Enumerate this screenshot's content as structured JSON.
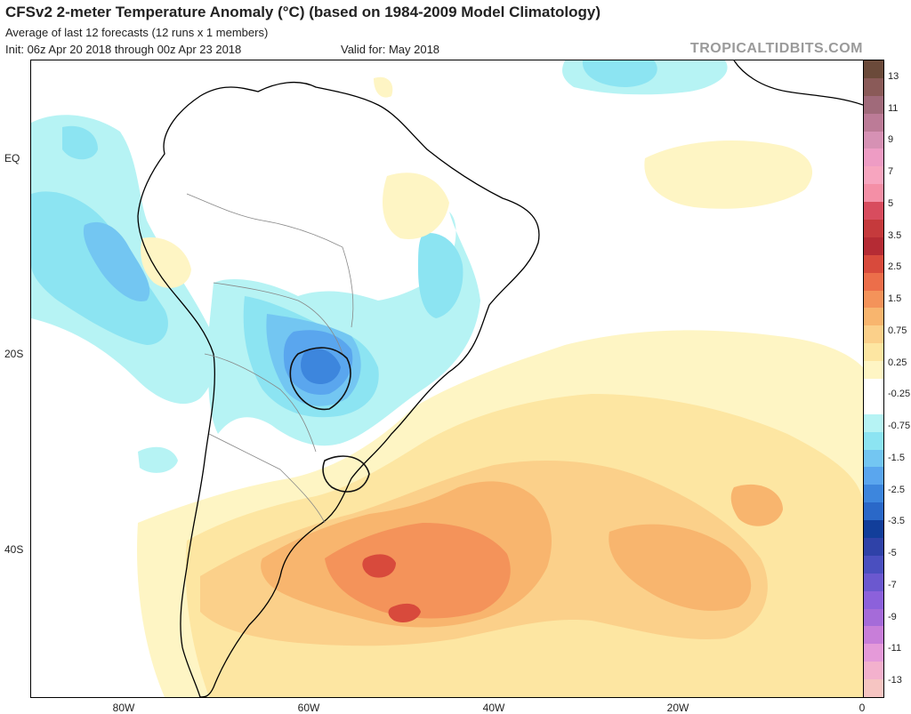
{
  "header": {
    "title": "CFSv2 2-meter Temperature Anomaly (°C) (based on 1984-2009 Model Climatology)",
    "subtitle": "Average of last 12 forecasts (12 runs x 1 members)",
    "init": "Init: 06z Apr 20 2018 through 00z Apr 23 2018",
    "valid": "Valid for: May 2018",
    "site": "TROPICALTIDBITS.COM"
  },
  "axes": {
    "lat_labels": [
      "EQ",
      "20S",
      "40S"
    ],
    "lon_labels": [
      "80W",
      "60W",
      "40W",
      "20W",
      "0"
    ]
  },
  "colorbar": {
    "labels": [
      "13",
      "11",
      "9",
      "7",
      "5",
      "3.5",
      "2.5",
      "1.5",
      "0.75",
      "0.25",
      "-0.25",
      "-0.75",
      "-1.5",
      "-2.5",
      "-3.5",
      "-5",
      "-7",
      "-9",
      "-11",
      "-13"
    ],
    "colors": [
      "#6b4a3a",
      "#8a5a58",
      "#a06a7a",
      "#bc7b97",
      "#d691b4",
      "#ee9cc4",
      "#f7a5bf",
      "#f48fa6",
      "#d84c5e",
      "#c53a3c",
      "#b52b34",
      "#d84a3c",
      "#ec6e4a",
      "#f4935a",
      "#f8b56e",
      "#fbd08a",
      "#fde6a2",
      "#fef5c4",
      "#ffffff",
      "#ffffff",
      "#b6f3f4",
      "#8ce4f2",
      "#73c6f2",
      "#5aa6ee",
      "#3d86dd",
      "#2a68c8",
      "#123e9a",
      "#2f42a8",
      "#4a4fbf",
      "#6b58cf",
      "#8c61db",
      "#a56bd9",
      "#c87ed9",
      "#e59ad9",
      "#f3b1cd",
      "#f6c5c2"
    ]
  },
  "map": {
    "anomaly_colors": {
      "neg_0_25": "#b6f3f4",
      "neg_0_75": "#8ce4f2",
      "neg_1_5": "#73c6f2",
      "neg_2_5": "#5aa6ee",
      "neg_3_5": "#3d86dd",
      "pos_0_25": "#fef5c4",
      "pos_0_75": "#fde6a2",
      "pos_1_5": "#fbd08a",
      "pos_2_5": "#f8b56e",
      "pos_3_5": "#f4935a",
      "pos_5": "#d84a3c"
    }
  }
}
